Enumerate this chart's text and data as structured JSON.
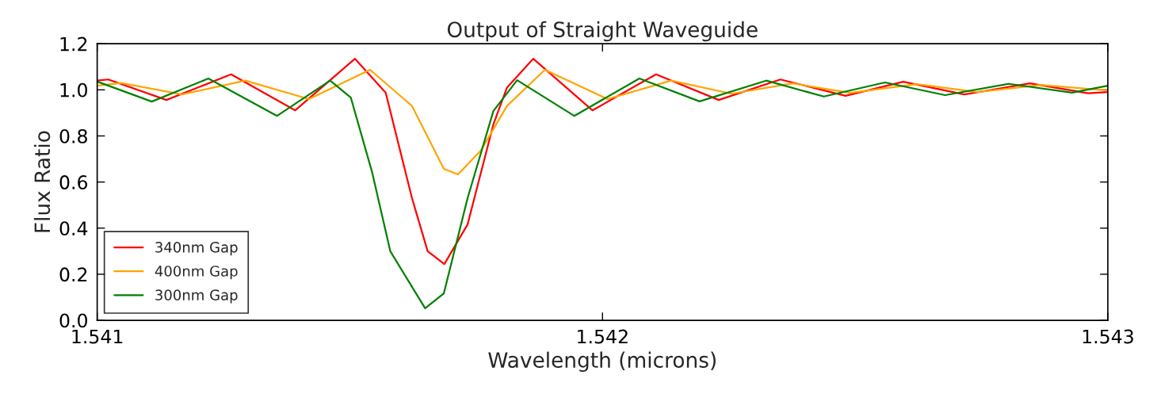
{
  "chart_data": {
    "type": "line",
    "title": "Output of Straight Waveguide",
    "xlabel": "Wavelength (microns)",
    "ylabel": "Flux Ratio",
    "xlim": [
      1.541,
      1.543
    ],
    "xticks": [
      1.541,
      1.542,
      1.543
    ],
    "ylim": [
      0.0,
      1.2
    ],
    "yticks": [
      {
        "value": 0.0,
        "label": "0.0"
      },
      {
        "value": 0.2,
        "label": "0.2"
      },
      {
        "value": 0.4,
        "label": "0.4"
      },
      {
        "value": 0.6,
        "label": "0.6"
      },
      {
        "value": 0.8,
        "label": "0.8"
      },
      {
        "value": 1.0,
        "label": "1.0"
      },
      {
        "value": 1.2,
        "label": "1.2"
      }
    ],
    "grid": false,
    "legend": "bottom left",
    "marker": "none",
    "line_style": "solid",
    "series": [
      {
        "name": "340nm Gap",
        "color": "#ff0000",
        "x": [
          1.541,
          1.541022,
          1.541137,
          1.541265,
          1.541392,
          1.54151,
          1.541571,
          1.541623,
          1.541654,
          1.541687,
          1.541733,
          1.541784,
          1.541811,
          1.541863,
          1.54198,
          1.542106,
          1.54223,
          1.542352,
          1.542481,
          1.542595,
          1.542716,
          1.542846,
          1.542961,
          1.543
        ],
        "values": [
          1.04,
          1.045,
          0.956,
          1.067,
          0.911,
          1.135,
          0.987,
          0.53,
          0.3,
          0.244,
          0.416,
          0.85,
          1.01,
          1.135,
          0.911,
          1.067,
          0.956,
          1.045,
          0.974,
          1.035,
          0.98,
          1.028,
          0.985,
          0.99
        ]
      },
      {
        "name": "400nm Gap",
        "color": "#ffa500",
        "x": [
          1.541,
          1.541047,
          1.541168,
          1.541293,
          1.541419,
          1.54154,
          1.541623,
          1.541686,
          1.541714,
          1.541759,
          1.541811,
          1.541886,
          1.54201,
          1.542136,
          1.542255,
          1.542376,
          1.54249,
          1.542622,
          1.542741,
          1.542867,
          1.543
        ],
        "values": [
          1.018,
          1.03,
          0.98,
          1.04,
          0.96,
          1.087,
          0.93,
          0.657,
          0.633,
          0.736,
          0.93,
          1.087,
          0.96,
          1.04,
          0.983,
          1.028,
          0.987,
          1.025,
          0.99,
          1.021,
          0.997
        ]
      },
      {
        "name": "300nm Gap",
        "color": "#008000",
        "x": [
          1.541,
          1.541108,
          1.54122,
          1.541356,
          1.541461,
          1.541502,
          1.541544,
          1.54158,
          1.541649,
          1.541686,
          1.541733,
          1.541784,
          1.541831,
          1.541944,
          1.542073,
          1.542192,
          1.542324,
          1.542438,
          1.542559,
          1.542678,
          1.542804,
          1.542929,
          1.543
        ],
        "values": [
          1.036,
          0.949,
          1.049,
          0.887,
          1.04,
          0.966,
          0.643,
          0.3,
          0.052,
          0.117,
          0.53,
          0.908,
          1.042,
          0.887,
          1.049,
          0.95,
          1.04,
          0.971,
          1.032,
          0.977,
          1.026,
          0.988,
          1.018
        ]
      }
    ]
  }
}
